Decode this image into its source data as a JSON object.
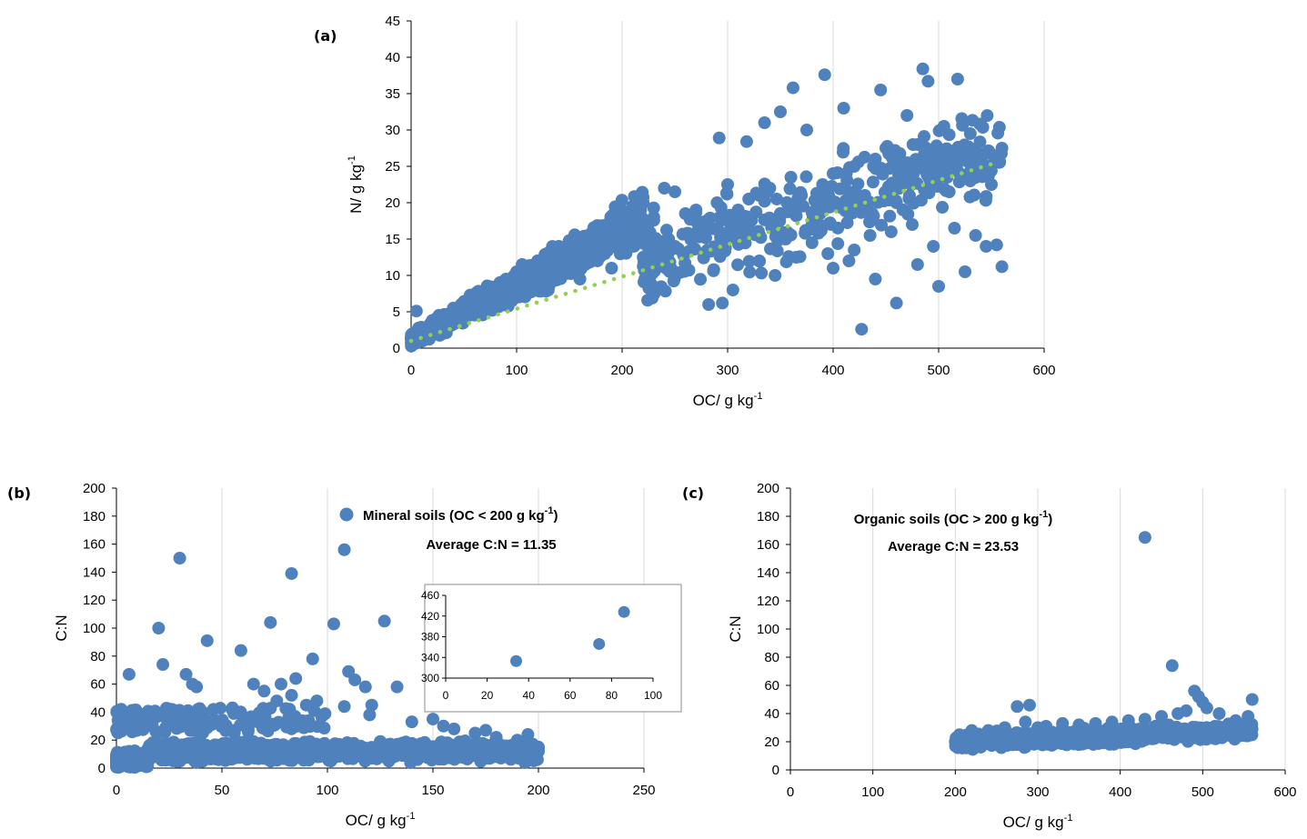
{
  "colors": {
    "points": "#4f81bd",
    "trend": "#92d050",
    "grid": "#d9d9d9",
    "axis": "#000000"
  },
  "chart_data": [
    {
      "panel": "(a)",
      "type": "scatter",
      "xlabel": "OC/ g kg",
      "xlabel_sup": "-1",
      "ylabel": "N/ g kg",
      "ylabel_sup": "-1",
      "xlim": [
        0,
        600
      ],
      "ylim": [
        0,
        45
      ],
      "xticks": [
        0,
        100,
        200,
        300,
        400,
        500,
        600
      ],
      "yticks": [
        0,
        5,
        10,
        15,
        20,
        25,
        30,
        35,
        40,
        45
      ],
      "grid": "vertical",
      "trendline": {
        "type": "linear",
        "style": "dotted",
        "x": [
          0,
          550
        ],
        "y": [
          1.0,
          25.3
        ]
      },
      "points_note": "dense cloud; representative points",
      "x": [
        5,
        12,
        20,
        30,
        40,
        50,
        60,
        70,
        80,
        90,
        100,
        110,
        120,
        130,
        140,
        150,
        160,
        170,
        180,
        190,
        200,
        210,
        220,
        230,
        240,
        250,
        260,
        270,
        280,
        290,
        300,
        310,
        320,
        330,
        340,
        350,
        360,
        370,
        380,
        390,
        400,
        410,
        420,
        430,
        440,
        450,
        460,
        470,
        480,
        490,
        500,
        510,
        520,
        530,
        540,
        550,
        560,
        485,
        490,
        518,
        392,
        362,
        427,
        460,
        560,
        292,
        318,
        335,
        350,
        375,
        410,
        445,
        470,
        505,
        530,
        345,
        365,
        400,
        420,
        440,
        480,
        500,
        525,
        545,
        282,
        295,
        305,
        330,
        355,
        380,
        395,
        415,
        435,
        455,
        475,
        495,
        515,
        535,
        555,
        100,
        130,
        160,
        190,
        220,
        250
      ],
      "y": [
        5.1,
        2.5,
        3.8,
        4.2,
        5.5,
        6.3,
        7.1,
        7.9,
        8.2,
        9.5,
        10.5,
        11.2,
        12.0,
        13.1,
        14.0,
        14.8,
        15.2,
        15.5,
        16.0,
        15.8,
        17.0,
        19.5,
        20.0,
        18.0,
        22.0,
        21.5,
        18.5,
        19.0,
        17.5,
        20.0,
        22.5,
        19.0,
        20.5,
        21.0,
        22.0,
        18.5,
        23.5,
        21.0,
        17.0,
        22.5,
        24.0,
        19.5,
        25.0,
        21.0,
        26.0,
        27.5,
        20.0,
        25.5,
        28.0,
        22.0,
        24.5,
        21.5,
        26.5,
        23.0,
        25.0,
        22.5,
        27.5,
        38.4,
        36.7,
        37.0,
        37.6,
        35.8,
        2.6,
        6.2,
        11.2,
        28.9,
        28.4,
        31.0,
        32.5,
        30.0,
        33.0,
        35.5,
        32.0,
        30.5,
        29.5,
        10.0,
        12.5,
        11.0,
        13.5,
        9.5,
        11.5,
        8.5,
        10.5,
        14.0,
        6.0,
        6.2,
        8.0,
        12.0,
        15.0,
        14.5,
        13.0,
        12.0,
        15.5,
        16.0,
        17.0,
        14.0,
        16.5,
        15.5,
        14.2,
        7.0,
        8.0,
        9.5,
        11.0,
        12.5,
        14.0
      ]
    },
    {
      "panel": "(b)",
      "type": "scatter",
      "xlabel": "OC/ g kg",
      "xlabel_sup": "-1",
      "ylabel": "C:N",
      "xlim": [
        0,
        250
      ],
      "ylim": [
        0,
        200
      ],
      "xticks": [
        0,
        50,
        100,
        150,
        200,
        250
      ],
      "yticks": [
        0,
        20,
        40,
        60,
        80,
        100,
        120,
        140,
        160,
        180,
        200
      ],
      "grid": "vertical",
      "legend": {
        "label": "Mineral soils (OC < 200 g kg",
        "label_sup": "-1",
        "label_end": ")",
        "placement": "top-right"
      },
      "annotation": "Average C:N = 11.35",
      "points_note": "dense band 0-40 plus outliers",
      "x": [
        6,
        20,
        22,
        30,
        33,
        36,
        38,
        43,
        46,
        59,
        65,
        70,
        73,
        76,
        78,
        83,
        85,
        93,
        95,
        103,
        108,
        110,
        113,
        118,
        121,
        127,
        133,
        108,
        83,
        150,
        155,
        160,
        170,
        180,
        190,
        200,
        10,
        15,
        25,
        40,
        55,
        90,
        120,
        140,
        175,
        195
      ],
      "y": [
        67,
        100,
        74,
        150,
        67,
        60,
        58,
        91,
        42,
        84,
        60,
        55,
        104,
        48,
        60,
        139,
        64,
        78,
        48,
        103,
        156,
        69,
        63,
        58,
        45,
        105,
        58,
        44,
        52,
        35,
        30,
        28,
        25,
        22,
        20,
        15,
        30,
        35,
        41,
        40,
        43,
        45,
        38,
        33,
        27,
        24
      ]
    },
    {
      "panel": "inset",
      "type": "scatter",
      "xlim": [
        0,
        100
      ],
      "ylim": [
        300,
        460
      ],
      "xticks": [
        0,
        20,
        40,
        60,
        80,
        100
      ],
      "yticks": [
        300,
        340,
        380,
        420,
        460
      ],
      "x": [
        34,
        74,
        86
      ],
      "y": [
        333,
        366,
        428
      ]
    },
    {
      "panel": "(c)",
      "type": "scatter",
      "xlabel": "OC/ g kg",
      "xlabel_sup": "-1",
      "ylabel": "C:N",
      "xlim": [
        0,
        600
      ],
      "ylim": [
        0,
        200
      ],
      "xticks": [
        0,
        100,
        200,
        300,
        400,
        500,
        600
      ],
      "yticks": [
        0,
        20,
        40,
        60,
        80,
        100,
        120,
        140,
        160,
        180,
        200
      ],
      "grid": "vertical",
      "legend": {
        "label": "Organic soils (OC > 200 g kg",
        "label_sup": "-1",
        "label_end": ")",
        "placement": "top-left"
      },
      "annotation": "Average C:N = 23.53",
      "points_note": "band 200-560 plus outliers",
      "x": [
        430,
        463,
        275,
        290,
        490,
        495,
        500,
        505,
        560,
        555,
        480,
        470,
        450,
        430,
        410,
        390,
        370,
        350,
        330,
        310,
        300,
        285,
        260,
        240,
        220,
        205,
        200,
        520,
        540
      ],
      "y": [
        165,
        74,
        45,
        46,
        56,
        52,
        48,
        44,
        50,
        38,
        42,
        40,
        38,
        36,
        35,
        34,
        33,
        32,
        33,
        31,
        30,
        34,
        30,
        28,
        28,
        25,
        20,
        40,
        35
      ]
    }
  ]
}
